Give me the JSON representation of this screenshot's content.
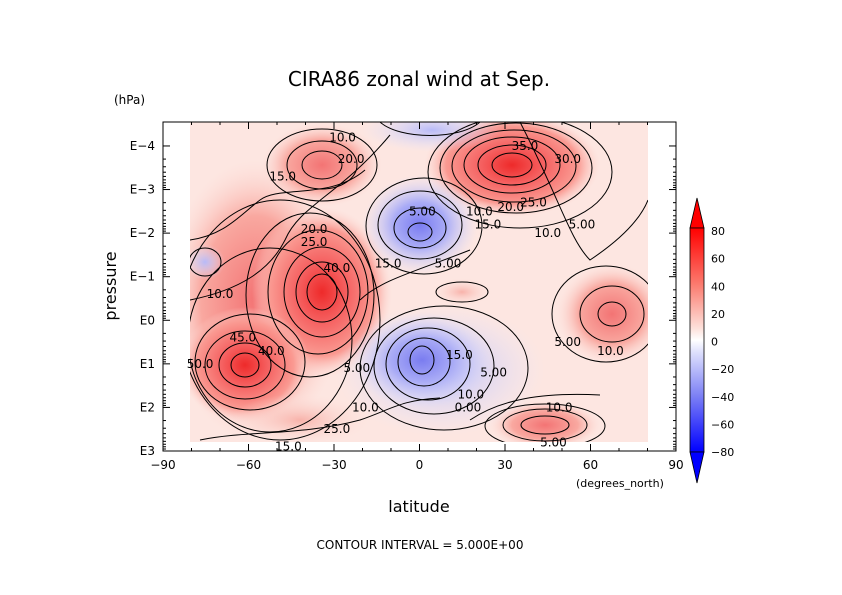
{
  "colors": {
    "negative_strong": "#0000ff",
    "negative_light": "#dde0ff",
    "neutral": "#ffffff",
    "positive_light": "#ffe4e0",
    "positive_strong": "#ff0000",
    "contour_line": "#000000"
  },
  "chart_data": {
    "type": "contour",
    "title": "CIRA86 zonal wind at Sep.",
    "xlabel": "latitude",
    "ylabel": "pressure",
    "x_unit": "(degrees_north)",
    "y_unit": "(hPa)",
    "xlim": [
      -90,
      90
    ],
    "x_ticks": [
      -90,
      -60,
      -30,
      0,
      30,
      60,
      90
    ],
    "x_tick_labels": [
      "−90",
      "−60",
      "−30",
      "0",
      "30",
      "60",
      "90"
    ],
    "y_scale": "log",
    "y_tick_labels": [
      "E−4",
      "E−3",
      "E−2",
      "E−1",
      "E0",
      "E1",
      "E2",
      "E3"
    ],
    "footer": "CONTOUR INTERVAL = 5.000E+00",
    "contour_interval": 5,
    "colorbar": {
      "range": [
        -80,
        80
      ],
      "labels": [
        "80",
        "60",
        "40",
        "20",
        "0",
        "−20",
        "−40",
        "−60",
        "−80"
      ]
    },
    "contour_labels": [
      {
        "text": "10.0",
        "lat": -27,
        "log_p": -4.2
      },
      {
        "text": "20.0",
        "lat": -24,
        "log_p": -3.7
      },
      {
        "text": "15.0",
        "lat": -48,
        "log_p": -3.3
      },
      {
        "text": "20.0",
        "lat": -37,
        "log_p": -2.1
      },
      {
        "text": "25.0",
        "lat": -37,
        "log_p": -1.8
      },
      {
        "text": "40.0",
        "lat": -29,
        "log_p": -1.2
      },
      {
        "text": "10.0",
        "lat": -70,
        "log_p": -0.6
      },
      {
        "text": "45.0",
        "lat": -62,
        "log_p": 0.4
      },
      {
        "text": "40.0",
        "lat": -52,
        "log_p": 0.7
      },
      {
        "text": "35.0",
        "lat": 37,
        "log_p": -4.0
      },
      {
        "text": "30.0",
        "lat": 52,
        "log_p": -3.7
      },
      {
        "text": "25.0",
        "lat": 40,
        "log_p": -2.7
      },
      {
        "text": "20.0",
        "lat": 32,
        "log_p": -2.6
      },
      {
        "text": "10.0",
        "lat": 21,
        "log_p": -2.5
      },
      {
        "text": "15.0",
        "lat": 24,
        "log_p": -2.2
      },
      {
        "text": "5.00",
        "lat": 1,
        "log_p": -2.5
      },
      {
        "text": "10.0",
        "lat": 45,
        "log_p": -2.0
      },
      {
        "text": "5.00",
        "lat": 57,
        "log_p": -2.2
      },
      {
        "text": "5.00",
        "lat": 10,
        "log_p": -1.3
      },
      {
        "text": "15.0",
        "lat": -11,
        "log_p": -1.3
      },
      {
        "text": "15.0",
        "lat": 14,
        "log_p": 0.8
      },
      {
        "text": "5.00",
        "lat": 26,
        "log_p": 1.2
      },
      {
        "text": "10.0",
        "lat": 18,
        "log_p": 1.7
      },
      {
        "text": "0.00",
        "lat": 17,
        "log_p": 2.0
      },
      {
        "text": "5.00",
        "lat": 52,
        "log_p": 0.5
      },
      {
        "text": "10.0",
        "lat": 67,
        "log_p": 0.7
      },
      {
        "text": "10.0",
        "lat": 49,
        "log_p": 2.0
      },
      {
        "text": "5.00",
        "lat": 47,
        "log_p": 2.8
      },
      {
        "text": "5.00",
        "lat": -22,
        "log_p": 1.1
      },
      {
        "text": "10.0",
        "lat": -19,
        "log_p": 2.0
      },
      {
        "text": "25.0",
        "lat": -29,
        "log_p": 2.5
      },
      {
        "text": "15.0",
        "lat": -46,
        "log_p": 2.9
      },
      {
        "text": "50.0",
        "lat": -77,
        "log_p": 1.0
      }
    ]
  }
}
